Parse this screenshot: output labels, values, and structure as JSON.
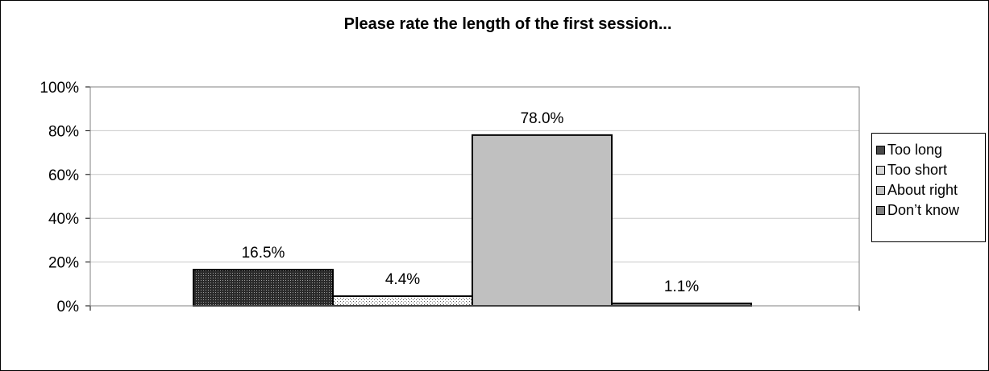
{
  "chart_data": {
    "type": "bar",
    "title": "Please rate the length of the first session...",
    "xlabel": "",
    "ylabel": "",
    "ylim": [
      0,
      100
    ],
    "y_ticks": [
      "0%",
      "20%",
      "40%",
      "60%",
      "80%",
      "100%"
    ],
    "grid": true,
    "legend_position": "right",
    "series": [
      {
        "name": "Too long",
        "value": 16.5,
        "label": "16.5%",
        "fill": "#2a2a2a",
        "pattern": "dense-dots"
      },
      {
        "name": "Too short",
        "value": 4.4,
        "label": "4.4%",
        "fill": "#ffffff",
        "pattern": "light-dots"
      },
      {
        "name": "About right",
        "value": 78.0,
        "label": "78.0%",
        "fill": "#c0c0c0",
        "pattern": "solid"
      },
      {
        "name": "Don’t know",
        "value": 1.1,
        "label": "1.1%",
        "fill": "#808080",
        "pattern": "solid"
      }
    ]
  }
}
